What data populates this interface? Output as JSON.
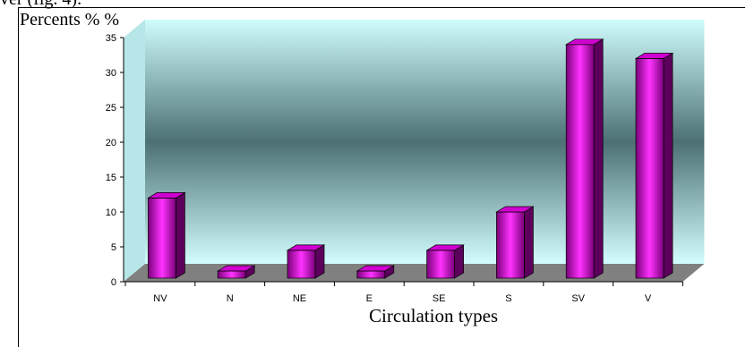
{
  "page": {
    "top_fragment": "ver (fig. 4)."
  },
  "chart_data": {
    "type": "bar",
    "categories": [
      "NV",
      "N",
      "NE",
      "E",
      "SE",
      "S",
      "SV",
      "V"
    ],
    "values": [
      12,
      1.5,
      4.5,
      0.5,
      4.5,
      10,
      34,
      32
    ],
    "yticks": [
      0,
      5,
      10,
      15,
      20,
      25,
      30,
      35
    ],
    "ylim": [
      0,
      35
    ],
    "ylabel": "Percents  % %",
    "xlabel": "Circulation types",
    "colors": {
      "bar_front": "#ff33ff",
      "bar_dark": "#660066",
      "bar_top": "#cc00cc",
      "wall_top": "#ccffff",
      "wall_mid": "#4a6e72",
      "floor": "#808080"
    }
  }
}
